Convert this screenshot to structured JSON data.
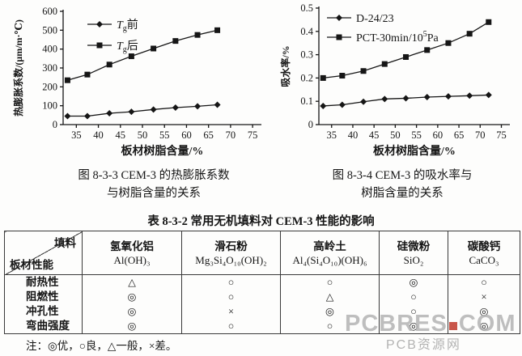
{
  "chart_data": [
    {
      "type": "line",
      "title": "图 8-3-3 CEM-3 的热膨胀系数与树脂含量的关系",
      "xlabel": "板材树脂含量/%",
      "ylabel": "热膨胀系数/(μm/m·℃)",
      "xlim": [
        32,
        77
      ],
      "ylim": [
        0,
        600
      ],
      "grid": false,
      "legend_position": "upper-left",
      "xticks": [
        {
          "v": 35,
          "label": "35"
        },
        {
          "v": 40,
          "label": "40"
        },
        {
          "v": 45,
          "label": "45"
        },
        {
          "v": 50,
          "label": "50"
        },
        {
          "v": 55,
          "label": "55"
        },
        {
          "v": 60,
          "label": "60"
        },
        {
          "v": 65,
          "label": "65"
        },
        {
          "v": 70,
          "label": "70"
        },
        {
          "v": 75,
          "label": "75"
        }
      ],
      "yticks": [
        {
          "v": 0,
          "label": "0"
        },
        {
          "v": 100,
          "label": "100"
        },
        {
          "v": 200,
          "label": "200"
        },
        {
          "v": 300,
          "label": "300"
        },
        {
          "v": 400,
          "label": "400"
        },
        {
          "v": 500,
          "label": "500"
        },
        {
          "v": 600,
          "label": "600"
        }
      ],
      "legend": [
        {
          "marker": "diamond",
          "segments": [
            {
              "text": "T",
              "style": "italic"
            },
            {
              "text": "g",
              "style": "sub"
            },
            {
              "text": "前",
              "style": ""
            }
          ]
        },
        {
          "marker": "square",
          "segments": [
            {
              "text": "T",
              "style": "italic"
            },
            {
              "text": "g",
              "style": "sub"
            },
            {
              "text": "后",
              "style": ""
            }
          ]
        }
      ],
      "series": [
        {
          "name": "Tg前",
          "marker": "diamond",
          "points": [
            [
              33,
              45
            ],
            [
              37.5,
              45
            ],
            [
              42.5,
              60
            ],
            [
              47.5,
              68
            ],
            [
              52.5,
              80
            ],
            [
              57.5,
              90
            ],
            [
              62.5,
              97
            ],
            [
              67,
              105
            ]
          ]
        },
        {
          "name": "Tg后",
          "marker": "square",
          "points": [
            [
              33,
              235
            ],
            [
              37.5,
              265
            ],
            [
              42.5,
              318
            ],
            [
              47.5,
              362
            ],
            [
              52.5,
              403
            ],
            [
              57.5,
              443
            ],
            [
              62.5,
              475
            ],
            [
              67,
              500
            ]
          ]
        }
      ]
    },
    {
      "type": "line",
      "title": "图 8-3-4 CEM-3 的吸水率与树脂含量的关系",
      "xlabel": "板材树脂含量/%",
      "ylabel": "吸水率/%",
      "xlim": [
        32,
        77
      ],
      "ylim": [
        0,
        0.5
      ],
      "grid": false,
      "legend_position": "upper-left",
      "xticks": [
        {
          "v": 35,
          "label": "35"
        },
        {
          "v": 40,
          "label": "40"
        },
        {
          "v": 45,
          "label": "45"
        },
        {
          "v": 50,
          "label": "50"
        },
        {
          "v": 55,
          "label": "55"
        },
        {
          "v": 60,
          "label": "60"
        },
        {
          "v": 65,
          "label": "65"
        },
        {
          "v": 70,
          "label": "70"
        },
        {
          "v": 75,
          "label": "75"
        }
      ],
      "yticks": [
        {
          "v": 0,
          "label": "0"
        },
        {
          "v": 0.1,
          "label": "0.1"
        },
        {
          "v": 0.2,
          "label": "0.2"
        },
        {
          "v": 0.3,
          "label": "0.3"
        },
        {
          "v": 0.4,
          "label": "0.4"
        },
        {
          "v": 0.5,
          "label": "0.5"
        }
      ],
      "legend": [
        {
          "marker": "diamond",
          "segments": [
            {
              "text": "D-24/23",
              "style": ""
            }
          ]
        },
        {
          "marker": "square",
          "segments": [
            {
              "text": "PCT-30min/10",
              "style": ""
            },
            {
              "text": "5",
              "style": "sup"
            },
            {
              "text": "Pa",
              "style": ""
            }
          ]
        }
      ],
      "series": [
        {
          "name": "D-24/23",
          "marker": "diamond",
          "points": [
            [
              33,
              0.08
            ],
            [
              37.5,
              0.085
            ],
            [
              42.5,
              0.098
            ],
            [
              47.5,
              0.11
            ],
            [
              52.5,
              0.113
            ],
            [
              57.5,
              0.118
            ],
            [
              62.5,
              0.121
            ],
            [
              67.5,
              0.124
            ],
            [
              72,
              0.127
            ]
          ]
        },
        {
          "name": "PCT-30min/10⁵Pa",
          "marker": "square",
          "points": [
            [
              33,
              0.2
            ],
            [
              37.5,
              0.21
            ],
            [
              42.5,
              0.23
            ],
            [
              47.5,
              0.26
            ],
            [
              52.5,
              0.29
            ],
            [
              57.5,
              0.32
            ],
            [
              62.5,
              0.35
            ],
            [
              67.5,
              0.39
            ],
            [
              72,
              0.44
            ]
          ]
        }
      ]
    }
  ],
  "captions": [
    {
      "line1": "图 8-3-3  CEM-3 的热膨胀系数",
      "line2": "与树脂含量的关系"
    },
    {
      "line1": "图 8-3-4  CEM-3 的吸水率与",
      "line2": "树脂含量的关系"
    }
  ],
  "table": {
    "title": "表 8-3-2  常用无机填料对 CEM-3 性能的影响",
    "corner": {
      "top": "填料",
      "bottom": "板材性能"
    },
    "columns": [
      {
        "name": "氢氧化铝",
        "formula": "Al(OH)₃"
      },
      {
        "name": "滑石粉",
        "formula": "Mg₃Si₄O₁₀(OH)₂"
      },
      {
        "name": "高岭土",
        "formula": "Al₄(Si₄O₁₀)(OH)₆"
      },
      {
        "name": "硅微粉",
        "formula": "SiO₂"
      },
      {
        "name": "碳酸钙",
        "formula": "CaCO₃"
      }
    ],
    "rows": [
      {
        "label": "耐热性",
        "cells": [
          "△",
          "○",
          "○",
          "◎",
          "○"
        ]
      },
      {
        "label": "阻燃性",
        "cells": [
          "◎",
          "○",
          "△",
          "○",
          "×"
        ]
      },
      {
        "label": "冲孔性",
        "cells": [
          "◎",
          "×",
          "◎",
          "○",
          "◎"
        ]
      },
      {
        "label": "弯曲强度",
        "cells": [
          "◎",
          "○",
          "○",
          "◎",
          "◎"
        ]
      }
    ],
    "note": "注：◎优，○良，△一般，×差。"
  },
  "watermark": {
    "part1": "PCBRES",
    "part2": "COM",
    "subtitle": "PCB资源网",
    "gray": "#b4b4b4",
    "red": "#c0392b"
  },
  "colors": {
    "ink": "#161616",
    "table_border": "#3a3a3a"
  }
}
